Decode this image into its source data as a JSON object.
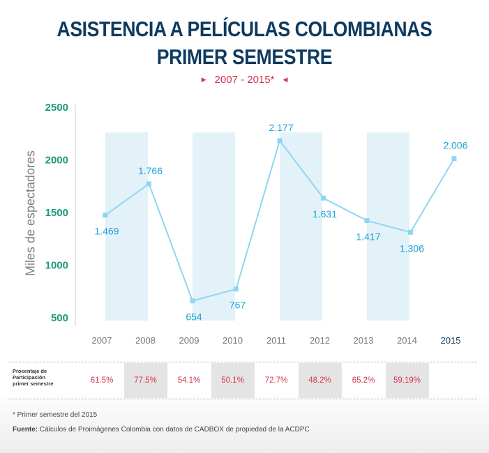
{
  "title_line1": "ASISTENCIA A PELÍCULAS COLOMBIANAS",
  "title_line2": "PRIMER SEMESTRE",
  "subtitle": "2007 - 2015*",
  "colors": {
    "title": "#0e3a5f",
    "accent_red": "#d6344e",
    "line": "#8fd6f3",
    "value_label": "#1aa3d9",
    "ytick": "#1a9b7a",
    "band": "#e3f1f8"
  },
  "chart_data": {
    "type": "line",
    "ylabel": "Miles de espectadores",
    "xlabel": "",
    "ylim": [
      500,
      2500
    ],
    "yticks": [
      {
        "value": 2500,
        "label": "2500"
      },
      {
        "value": 2000,
        "label": "2000"
      },
      {
        "value": 1500,
        "label": "1500"
      },
      {
        "value": 1000,
        "label": "1000"
      },
      {
        "value": 500,
        "label": "500"
      }
    ],
    "categories": [
      "2007",
      "2008",
      "2009",
      "2010",
      "2011",
      "2012",
      "2013",
      "2014",
      "2015"
    ],
    "values": [
      1469,
      1766,
      654,
      767,
      2177,
      1631,
      1417,
      1306,
      2006
    ],
    "value_labels": [
      "1.469",
      "1.766",
      "654",
      "767",
      "2.177",
      "1.631",
      "1.417",
      "1.306",
      "2.006"
    ],
    "shaded_categories": [
      "2007",
      "2009",
      "2011",
      "2013"
    ],
    "highlighted_category": "2015",
    "grid": false,
    "legend": "none"
  },
  "participation": {
    "label": "Procentaje de Participación primer semestre",
    "values": [
      "61.5%",
      "77.5%",
      "54.1%",
      "50.1%",
      "72.7%",
      "48.2%",
      "65.2%",
      "59.19%"
    ]
  },
  "footnote": "* Primer semestre del 2015",
  "source_label": "Fuente:",
  "source_text": "Cálculos de Proimágenes Colombia con datos de CADBOX de propiedad de la ACDPC"
}
